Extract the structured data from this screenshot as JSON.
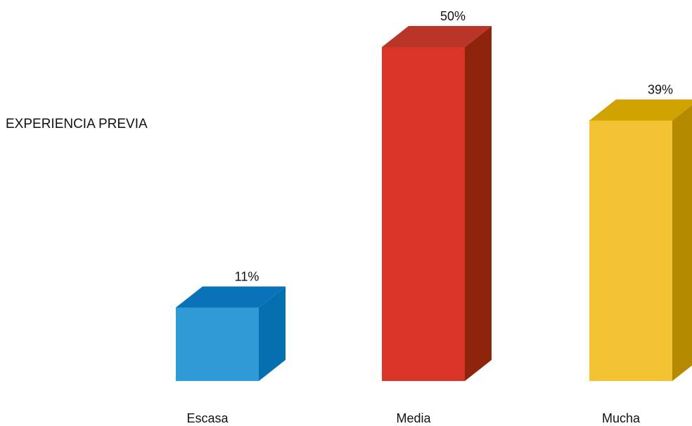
{
  "chart_data": {
    "type": "bar",
    "title": "EXPERIENCIA PREVIA",
    "categories": [
      "Escasa",
      "Media",
      "Mucha"
    ],
    "values": [
      11,
      50,
      39
    ],
    "value_labels": [
      "11%",
      "50%",
      "39%"
    ],
    "unit": "%",
    "ylim": [
      0,
      50
    ],
    "grid": false,
    "legend": "none",
    "style": "3d-column",
    "colors": [
      {
        "front": "#2e9bd7",
        "top": "#0a72b8",
        "side": "#0570b0"
      },
      {
        "front": "#da3429",
        "top": "#b83527",
        "side": "#8e240c"
      },
      {
        "front": "#f3c334",
        "top": "#d1a300",
        "side": "#b58900"
      }
    ]
  }
}
